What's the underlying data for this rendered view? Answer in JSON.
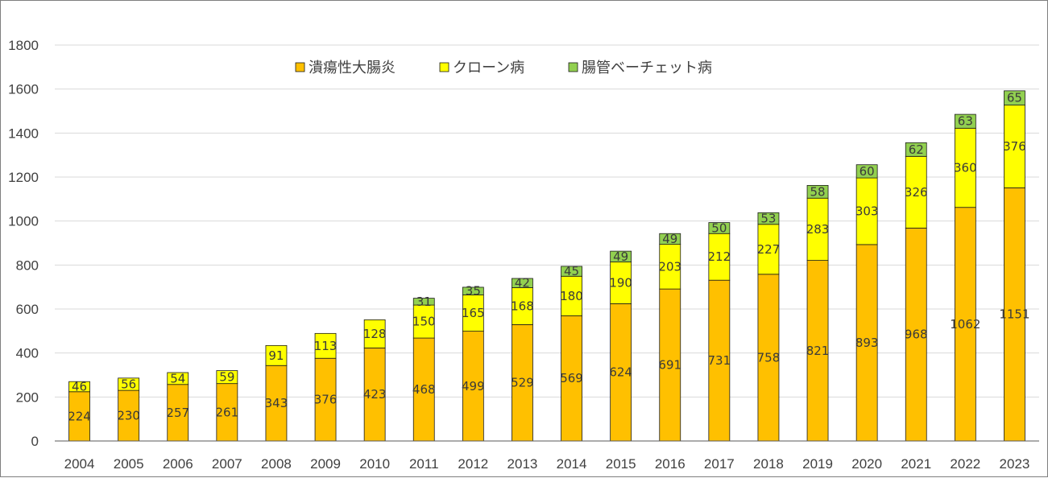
{
  "chart_data": {
    "type": "bar",
    "stacked": true,
    "title": "",
    "xlabel": "",
    "ylabel": "",
    "ylim": [
      0,
      1800
    ],
    "yticks": [
      0,
      200,
      400,
      600,
      800,
      1000,
      1200,
      1400,
      1600,
      1800
    ],
    "grid": "horizontal",
    "legend_position": "top-center",
    "categories": [
      "2004",
      "2005",
      "2006",
      "2007",
      "2008",
      "2009",
      "2010",
      "2011",
      "2012",
      "2013",
      "2014",
      "2015",
      "2016",
      "2017",
      "2018",
      "2019",
      "2020",
      "2021",
      "2022",
      "2023"
    ],
    "series": [
      {
        "name": "潰瘍性大腸炎",
        "color": "#FFC000",
        "values": [
          224,
          230,
          257,
          261,
          343,
          376,
          423,
          468,
          499,
          529,
          569,
          624,
          691,
          731,
          758,
          821,
          893,
          968,
          1062,
          1151
        ]
      },
      {
        "name": "クローン病",
        "color": "#FFFF00",
        "values": [
          46,
          56,
          54,
          59,
          91,
          113,
          128,
          150,
          165,
          168,
          180,
          190,
          203,
          212,
          227,
          283,
          303,
          326,
          360,
          376
        ]
      },
      {
        "name": "腸管ベーチェット病",
        "color": "#92D050",
        "values": [
          null,
          null,
          null,
          null,
          null,
          null,
          null,
          31,
          35,
          42,
          45,
          49,
          49,
          50,
          53,
          58,
          60,
          62,
          63,
          65
        ]
      }
    ]
  }
}
